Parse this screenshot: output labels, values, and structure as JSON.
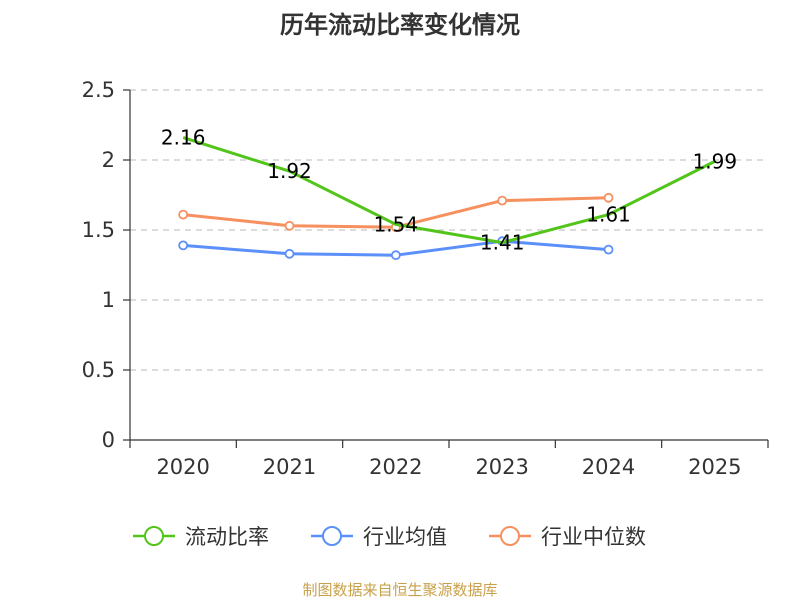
{
  "chart_data": {
    "type": "line",
    "title": "历年流动比率变化情况",
    "categories": [
      "2020",
      "2021",
      "2022",
      "2023",
      "2024",
      "2025"
    ],
    "ylim": [
      0,
      2.5
    ],
    "yticks": [
      "0",
      "0.5",
      "1",
      "1.5",
      "2",
      "2.5"
    ],
    "ytick_values": [
      0,
      0.5,
      1,
      1.5,
      2,
      2.5
    ],
    "grid": true,
    "legend_position": "bottom",
    "series": [
      {
        "name": "流动比率",
        "color": "#52c41a",
        "values": [
          2.16,
          1.92,
          1.54,
          1.41,
          1.61,
          1.99
        ],
        "labels": [
          "2.16",
          "1.92",
          "1.54",
          "1.41",
          "1.61",
          "1.99"
        ],
        "show_markers": false
      },
      {
        "name": "行业均值",
        "color": "#5b8ff9",
        "values": [
          1.39,
          1.33,
          1.32,
          1.42,
          1.36,
          null
        ],
        "show_markers": true
      },
      {
        "name": "行业中位数",
        "color": "#f6905e",
        "values": [
          1.61,
          1.53,
          1.52,
          1.71,
          1.73,
          null
        ],
        "show_markers": true
      }
    ]
  },
  "source_text": "制图数据来自恒生聚源数据库"
}
